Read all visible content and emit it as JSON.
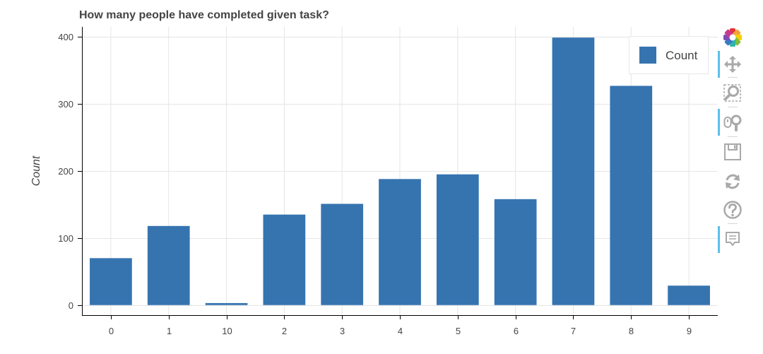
{
  "colors": {
    "bar": "#3674b0",
    "grid": "#e5e5e5",
    "axis": "#000000",
    "text": "#444444",
    "tool_icon": "#a9a9a9",
    "tool_active": "#26aae1"
  },
  "toolbar": {
    "tools": [
      {
        "icon": "bokeh-logo-icon",
        "active": false
      },
      {
        "icon": "pan-icon",
        "active": true
      },
      {
        "icon": "box-zoom-icon",
        "active": false
      },
      {
        "icon": "wheel-zoom-icon",
        "active": true
      },
      {
        "icon": "save-icon",
        "active": false
      },
      {
        "icon": "reset-icon",
        "active": false
      },
      {
        "icon": "help-icon",
        "active": false
      },
      {
        "icon": "hover-icon",
        "active": true
      }
    ]
  },
  "chart_data": {
    "type": "bar",
    "title": "How many people have completed given task?",
    "xlabel": "",
    "ylabel": "Count",
    "categories": [
      "0",
      "1",
      "10",
      "2",
      "3",
      "4",
      "5",
      "6",
      "7",
      "8",
      "9"
    ],
    "series": [
      {
        "name": "Count",
        "values": [
          70,
          118,
          3,
          135,
          151,
          188,
          195,
          158,
          399,
          327,
          29
        ]
      }
    ],
    "ylim": [
      -15,
      415
    ],
    "yticks": [
      0,
      100,
      200,
      300,
      400
    ],
    "grid": true,
    "legend": {
      "position": "top-right",
      "entries": [
        "Count"
      ]
    }
  }
}
